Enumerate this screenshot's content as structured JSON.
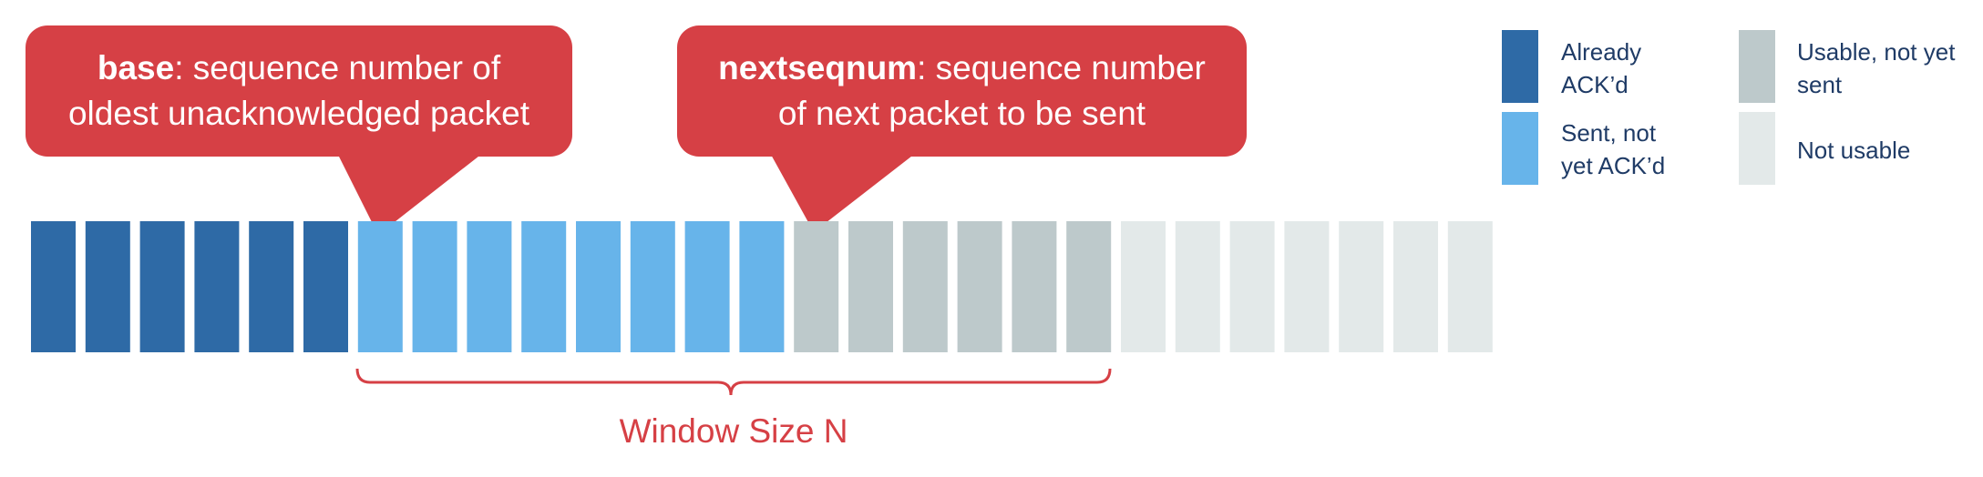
{
  "callouts": {
    "base": {
      "term": "base",
      "rest": ": sequence number of",
      "line2": "oldest unacknowledged packet"
    },
    "nextseqnum": {
      "term": "nextseqnum",
      "rest": ": sequence number",
      "line2": "of next packet to be sent"
    }
  },
  "window_label": "Window Size N",
  "legend": [
    {
      "line1": "Already",
      "line2": "ACK’d",
      "color": "#2e6aa6"
    },
    {
      "line1": "Sent, not",
      "line2": "yet ACK’d",
      "color": "#67b4ea"
    },
    {
      "line1": "Usable, not yet",
      "line2": "sent",
      "color": "#bdc9cb"
    },
    {
      "line1": "Not usable",
      "line2": "",
      "color": "#e3e9e9"
    }
  ],
  "packets": {
    "states": [
      "acked",
      "acked",
      "acked",
      "acked",
      "acked",
      "acked",
      "sent",
      "sent",
      "sent",
      "sent",
      "sent",
      "sent",
      "sent",
      "sent",
      "usable",
      "usable",
      "usable",
      "usable",
      "usable",
      "usable",
      "unusable",
      "unusable",
      "unusable",
      "unusable",
      "unusable",
      "unusable",
      "unusable"
    ],
    "colors": {
      "acked": "#2e6aa6",
      "sent": "#67b4ea",
      "usable": "#bdc9cb",
      "unusable": "#e3e9e9"
    }
  },
  "accent_color": "#d64045"
}
